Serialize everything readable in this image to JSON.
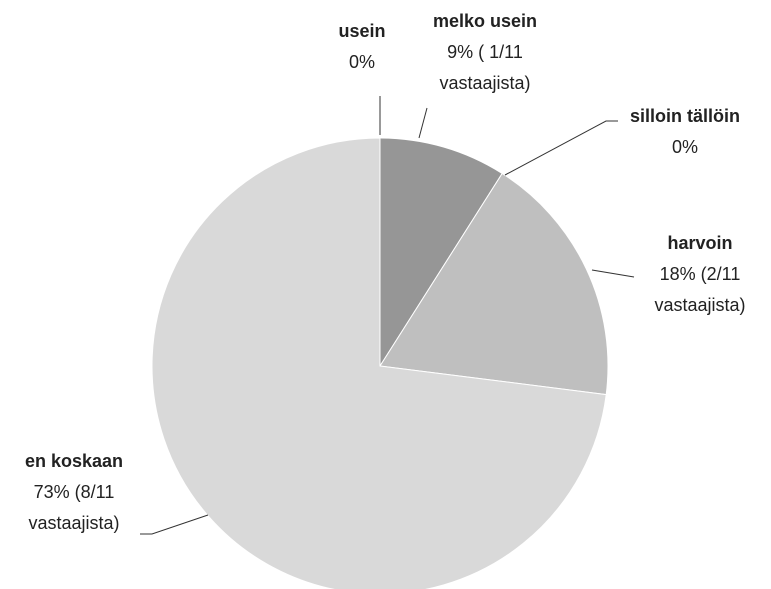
{
  "chart_data": {
    "type": "pie",
    "categories": [
      "usein",
      "melko usein",
      "silloin tällöin",
      "harvoin",
      "en koskaan"
    ],
    "values": [
      0,
      9,
      0,
      18,
      73
    ],
    "value_labels": [
      "0%",
      "9% ( 1/11 vastaajista)",
      "0%",
      "18% (2/11 vastaajista)",
      "73% (8/11 vastaajista)"
    ],
    "colors": [
      "#7f7f7f",
      "#969696",
      "#a6a6a6",
      "#bfbfbf",
      "#d9d9d9"
    ]
  }
}
